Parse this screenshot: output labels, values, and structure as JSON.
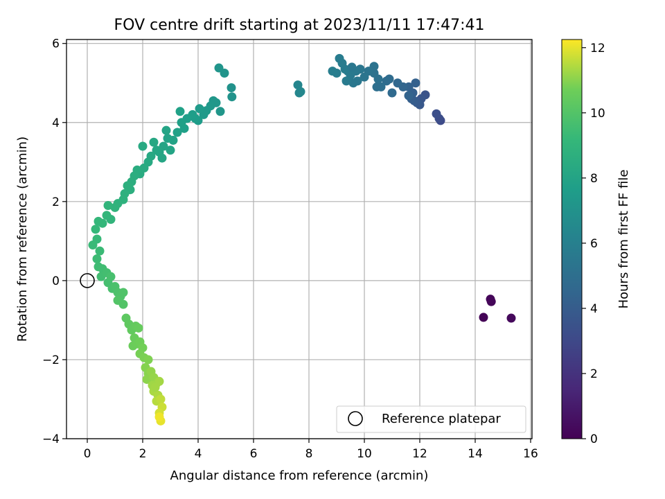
{
  "chart_data": {
    "type": "scatter",
    "title": "FOV centre drift starting at 2023/11/11 17:47:41",
    "xlabel": "Angular distance from reference (arcmin)",
    "ylabel": "Rotation from reference (arcmin)",
    "xlim": [
      -0.75,
      16.05
    ],
    "ylim": [
      -4.0,
      6.1
    ],
    "xticks": [
      0,
      2,
      4,
      6,
      8,
      10,
      12,
      14,
      16
    ],
    "yticks": [
      -4,
      -2,
      0,
      2,
      4,
      6
    ],
    "grid": true,
    "legend": {
      "placement": "lower right",
      "entries": [
        "Reference platepar"
      ]
    },
    "colorbar": {
      "label": "Hours from first FF file",
      "range": [
        0,
        12.25
      ],
      "ticks": [
        0,
        2,
        4,
        6,
        8,
        10,
        12
      ],
      "colormap": "viridis"
    },
    "reference_point": {
      "name": "Reference platepar",
      "x": 0,
      "y": 0
    },
    "series": [
      {
        "points": [
          {
            "x": 14.3,
            "y": -0.93,
            "c": 0.1
          },
          {
            "x": 14.55,
            "y": -0.47,
            "c": 0.15
          },
          {
            "x": 14.58,
            "y": -0.53,
            "c": 0.2
          },
          {
            "x": 15.3,
            "y": -0.95,
            "c": 0.3
          },
          {
            "x": 12.75,
            "y": 4.05,
            "c": 3.1
          },
          {
            "x": 12.7,
            "y": 4.1,
            "c": 3.2
          },
          {
            "x": 12.6,
            "y": 4.22,
            "c": 3.3
          },
          {
            "x": 12.2,
            "y": 4.7,
            "c": 3.5
          },
          {
            "x": 12.05,
            "y": 4.6,
            "c": 3.7
          },
          {
            "x": 12.0,
            "y": 4.45,
            "c": 3.8
          },
          {
            "x": 11.9,
            "y": 4.5,
            "c": 3.9
          },
          {
            "x": 11.8,
            "y": 4.55,
            "c": 4.0
          },
          {
            "x": 11.7,
            "y": 4.6,
            "c": 4.1
          },
          {
            "x": 11.75,
            "y": 4.75,
            "c": 4.2
          },
          {
            "x": 11.6,
            "y": 4.9,
            "c": 4.3
          },
          {
            "x": 11.85,
            "y": 5.0,
            "c": 4.25
          },
          {
            "x": 11.6,
            "y": 4.68,
            "c": 4.4
          },
          {
            "x": 11.4,
            "y": 4.9,
            "c": 4.5
          },
          {
            "x": 11.2,
            "y": 5.0,
            "c": 4.6
          },
          {
            "x": 11.0,
            "y": 4.75,
            "c": 4.7
          },
          {
            "x": 10.9,
            "y": 5.1,
            "c": 4.8
          },
          {
            "x": 10.8,
            "y": 5.05,
            "c": 4.9
          },
          {
            "x": 10.6,
            "y": 4.9,
            "c": 5.0
          },
          {
            "x": 10.45,
            "y": 4.9,
            "c": 5.0
          },
          {
            "x": 10.5,
            "y": 5.1,
            "c": 5.1
          },
          {
            "x": 10.35,
            "y": 5.25,
            "c": 5.2
          },
          {
            "x": 10.35,
            "y": 5.42,
            "c": 5.25
          },
          {
            "x": 10.15,
            "y": 5.3,
            "c": 5.3
          },
          {
            "x": 10.0,
            "y": 5.15,
            "c": 5.35
          },
          {
            "x": 9.85,
            "y": 5.35,
            "c": 5.4
          },
          {
            "x": 9.75,
            "y": 5.05,
            "c": 5.45
          },
          {
            "x": 9.6,
            "y": 5.0,
            "c": 5.5
          },
          {
            "x": 9.7,
            "y": 5.3,
            "c": 5.55
          },
          {
            "x": 9.5,
            "y": 5.2,
            "c": 5.6
          },
          {
            "x": 9.4,
            "y": 5.3,
            "c": 5.65
          },
          {
            "x": 9.35,
            "y": 5.05,
            "c": 5.7
          },
          {
            "x": 9.2,
            "y": 5.5,
            "c": 5.75
          },
          {
            "x": 9.1,
            "y": 5.62,
            "c": 5.8
          },
          {
            "x": 9.0,
            "y": 5.25,
            "c": 5.85
          },
          {
            "x": 8.85,
            "y": 5.3,
            "c": 5.9
          },
          {
            "x": 9.3,
            "y": 5.35,
            "c": 5.8
          },
          {
            "x": 9.55,
            "y": 5.4,
            "c": 5.5
          },
          {
            "x": 7.6,
            "y": 4.95,
            "c": 6.3
          },
          {
            "x": 7.65,
            "y": 4.75,
            "c": 6.35
          },
          {
            "x": 7.7,
            "y": 4.78,
            "c": 6.4
          },
          {
            "x": 5.2,
            "y": 4.88,
            "c": 7.0
          },
          {
            "x": 5.22,
            "y": 4.65,
            "c": 7.05
          },
          {
            "x": 4.95,
            "y": 5.25,
            "c": 7.1
          },
          {
            "x": 4.75,
            "y": 5.38,
            "c": 7.15
          },
          {
            "x": 4.8,
            "y": 4.28,
            "c": 7.2
          },
          {
            "x": 4.65,
            "y": 4.5,
            "c": 7.25
          },
          {
            "x": 4.55,
            "y": 4.55,
            "c": 7.3
          },
          {
            "x": 4.45,
            "y": 4.42,
            "c": 7.35
          },
          {
            "x": 4.3,
            "y": 4.3,
            "c": 7.4
          },
          {
            "x": 4.2,
            "y": 4.2,
            "c": 7.45
          },
          {
            "x": 4.05,
            "y": 4.35,
            "c": 7.5
          },
          {
            "x": 4.0,
            "y": 4.05,
            "c": 7.55
          },
          {
            "x": 3.9,
            "y": 4.1,
            "c": 7.6
          },
          {
            "x": 3.8,
            "y": 4.2,
            "c": 7.65
          },
          {
            "x": 3.6,
            "y": 4.1,
            "c": 7.7
          },
          {
            "x": 3.5,
            "y": 3.85,
            "c": 7.75
          },
          {
            "x": 3.4,
            "y": 4.0,
            "c": 7.8
          },
          {
            "x": 3.35,
            "y": 4.28,
            "c": 7.82
          },
          {
            "x": 3.25,
            "y": 3.75,
            "c": 7.85
          },
          {
            "x": 3.1,
            "y": 3.55,
            "c": 7.9
          },
          {
            "x": 2.9,
            "y": 3.6,
            "c": 7.95
          },
          {
            "x": 2.85,
            "y": 3.8,
            "c": 8.0
          },
          {
            "x": 2.75,
            "y": 3.4,
            "c": 8.05
          },
          {
            "x": 2.6,
            "y": 3.25,
            "c": 8.1
          },
          {
            "x": 2.5,
            "y": 3.3,
            "c": 8.15
          },
          {
            "x": 2.4,
            "y": 3.5,
            "c": 8.2
          },
          {
            "x": 2.3,
            "y": 3.15,
            "c": 8.25
          },
          {
            "x": 2.2,
            "y": 3.0,
            "c": 8.3
          },
          {
            "x": 2.0,
            "y": 3.4,
            "c": 8.35
          },
          {
            "x": 2.05,
            "y": 2.85,
            "c": 8.4
          },
          {
            "x": 1.9,
            "y": 2.7,
            "c": 8.45
          },
          {
            "x": 1.8,
            "y": 2.8,
            "c": 8.5
          },
          {
            "x": 1.7,
            "y": 2.65,
            "c": 8.55
          },
          {
            "x": 1.6,
            "y": 2.5,
            "c": 8.6
          },
          {
            "x": 1.55,
            "y": 2.3,
            "c": 8.65
          },
          {
            "x": 1.45,
            "y": 2.4,
            "c": 8.7
          },
          {
            "x": 1.35,
            "y": 2.2,
            "c": 8.75
          },
          {
            "x": 1.3,
            "y": 2.05,
            "c": 8.8
          },
          {
            "x": 3.0,
            "y": 3.3,
            "c": 8.0
          },
          {
            "x": 2.7,
            "y": 3.1,
            "c": 8.1
          },
          {
            "x": 1.1,
            "y": 1.95,
            "c": 8.85
          },
          {
            "x": 1.0,
            "y": 1.85,
            "c": 8.9
          },
          {
            "x": 0.85,
            "y": 1.55,
            "c": 8.95
          },
          {
            "x": 0.75,
            "y": 1.9,
            "c": 9.0
          },
          {
            "x": 0.7,
            "y": 1.65,
            "c": 9.05
          },
          {
            "x": 0.55,
            "y": 1.45,
            "c": 9.1
          },
          {
            "x": 0.4,
            "y": 1.5,
            "c": 9.15
          },
          {
            "x": 0.3,
            "y": 1.3,
            "c": 9.2
          },
          {
            "x": 0.35,
            "y": 1.05,
            "c": 9.25
          },
          {
            "x": 0.2,
            "y": 0.9,
            "c": 9.3
          },
          {
            "x": 0.45,
            "y": 0.75,
            "c": 9.35
          },
          {
            "x": 0.35,
            "y": 0.55,
            "c": 9.4
          },
          {
            "x": 0.4,
            "y": 0.35,
            "c": 9.45
          },
          {
            "x": 0.55,
            "y": 0.3,
            "c": 9.5
          },
          {
            "x": 0.5,
            "y": 0.1,
            "c": 9.55
          },
          {
            "x": 0.7,
            "y": 0.2,
            "c": 9.6
          },
          {
            "x": 0.75,
            "y": -0.05,
            "c": 9.65
          },
          {
            "x": 0.85,
            "y": 0.1,
            "c": 9.7
          },
          {
            "x": 0.9,
            "y": -0.2,
            "c": 9.75
          },
          {
            "x": 1.0,
            "y": -0.15,
            "c": 9.8
          },
          {
            "x": 1.1,
            "y": -0.3,
            "c": 9.85
          },
          {
            "x": 1.2,
            "y": -0.4,
            "c": 9.9
          },
          {
            "x": 1.3,
            "y": -0.3,
            "c": 9.95
          },
          {
            "x": 1.3,
            "y": -0.6,
            "c": 10.0
          },
          {
            "x": 1.1,
            "y": -0.5,
            "c": 10.0
          },
          {
            "x": 1.4,
            "y": -0.95,
            "c": 10.3
          },
          {
            "x": 1.5,
            "y": -1.1,
            "c": 10.35
          },
          {
            "x": 1.6,
            "y": -1.25,
            "c": 10.4
          },
          {
            "x": 1.75,
            "y": -1.15,
            "c": 10.45
          },
          {
            "x": 1.85,
            "y": -1.2,
            "c": 10.5
          },
          {
            "x": 1.7,
            "y": -1.45,
            "c": 10.55
          },
          {
            "x": 1.65,
            "y": -1.65,
            "c": 10.6
          },
          {
            "x": 1.8,
            "y": -1.6,
            "c": 10.65
          },
          {
            "x": 1.9,
            "y": -1.55,
            "c": 10.7
          },
          {
            "x": 2.0,
            "y": -1.7,
            "c": 10.75
          },
          {
            "x": 1.9,
            "y": -1.85,
            "c": 10.8
          },
          {
            "x": 2.05,
            "y": -1.95,
            "c": 10.85
          },
          {
            "x": 2.2,
            "y": -2.0,
            "c": 10.9
          },
          {
            "x": 2.1,
            "y": -2.2,
            "c": 10.95
          },
          {
            "x": 2.2,
            "y": -2.35,
            "c": 11.0
          },
          {
            "x": 2.15,
            "y": -2.5,
            "c": 11.05
          },
          {
            "x": 2.3,
            "y": -2.3,
            "c": 11.1
          },
          {
            "x": 2.4,
            "y": -2.45,
            "c": 11.15
          },
          {
            "x": 2.5,
            "y": -2.6,
            "c": 11.2
          },
          {
            "x": 2.6,
            "y": -2.55,
            "c": 11.3
          },
          {
            "x": 2.4,
            "y": -2.8,
            "c": 11.35
          },
          {
            "x": 2.55,
            "y": -2.9,
            "c": 11.4
          },
          {
            "x": 2.5,
            "y": -3.05,
            "c": 11.5
          },
          {
            "x": 2.65,
            "y": -3.0,
            "c": 11.6
          },
          {
            "x": 2.7,
            "y": -3.2,
            "c": 11.7
          },
          {
            "x": 2.6,
            "y": -3.35,
            "c": 11.8
          },
          {
            "x": 2.65,
            "y": -3.55,
            "c": 12.0
          },
          {
            "x": 2.6,
            "y": -3.45,
            "c": 12.1
          },
          {
            "x": 2.35,
            "y": -2.65,
            "c": 11.25
          },
          {
            "x": 2.45,
            "y": -2.7,
            "c": 11.3
          }
        ]
      }
    ]
  }
}
